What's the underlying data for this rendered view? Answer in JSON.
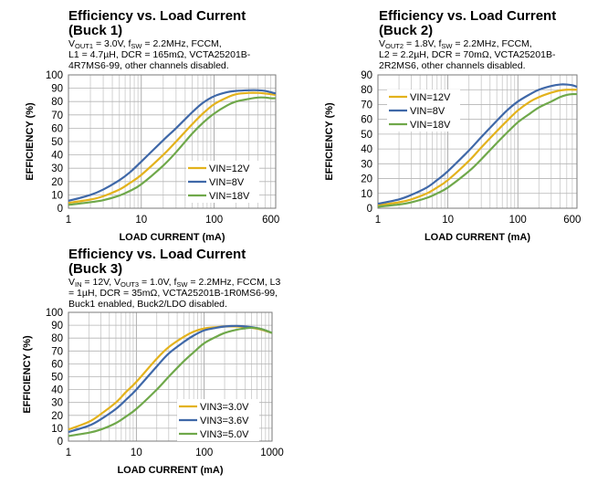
{
  "charts": [
    {
      "title1": "Efficiency vs. Load Current",
      "title2": "(Buck 1)",
      "cond": [
        [
          [
            "V",
            ""
          ],
          [
            "OUT1",
            "sub"
          ],
          [
            " = 3.0V, f",
            ""
          ],
          [
            "SW",
            "sub"
          ],
          [
            " = 2.2MHz, FCCM,",
            ""
          ]
        ],
        [
          [
            "L1 = 4.7µH, DCR = 165mΩ, VCTA25201B-",
            ""
          ]
        ],
        [
          [
            "4R7MS6-99, other channels disabled.",
            ""
          ]
        ]
      ]
    },
    {
      "title1": "Efficiency vs. Load Current",
      "title2": "(Buck 2)",
      "cond": [
        [
          [
            "V",
            ""
          ],
          [
            "OUT2",
            "sub"
          ],
          [
            " = 1.8V, f",
            ""
          ],
          [
            "SW",
            "sub"
          ],
          [
            " = 2.2MHz, FCCM,",
            ""
          ]
        ],
        [
          [
            "L2 = 2.2µH, DCR = 70mΩ, VCTA25201B-",
            ""
          ]
        ],
        [
          [
            "2R2MS6, other channels disabled.",
            ""
          ]
        ]
      ]
    },
    {
      "title1": "Efficiency vs. Load Current",
      "title2": "(Buck 3)",
      "cond": [
        [
          [
            "V",
            ""
          ],
          [
            "IN",
            "sub"
          ],
          [
            " = 12V, V",
            ""
          ],
          [
            "OUT3",
            "sub"
          ],
          [
            " = 1.0V, f",
            ""
          ],
          [
            "SW",
            "sub"
          ],
          [
            " = 2.2MHz, FCCM, L3",
            ""
          ]
        ],
        [
          [
            "= 1µH, DCR = 35mΩ, VCTA25201B-1R0MS6-99,",
            ""
          ]
        ],
        [
          [
            "Buck1 enabled, Buck2/LDO disabled.",
            ""
          ]
        ]
      ]
    }
  ],
  "chart_data": [
    {
      "type": "line",
      "xscale": "log",
      "xlim": [
        1,
        700
      ],
      "xticks": [
        1,
        10,
        100,
        600
      ],
      "ylim": [
        0,
        100
      ],
      "yticks": [
        0,
        10,
        20,
        30,
        40,
        50,
        60,
        70,
        80,
        90,
        100
      ],
      "xlabel": "LOAD CURRENT (mA)",
      "ylabel": "EFFICIENCY (%)",
      "grid": true,
      "legend": "bottom-right",
      "series": [
        {
          "name": "VIN=12V",
          "color": "#E3B21C",
          "x": [
            1,
            2,
            3,
            5,
            7,
            10,
            20,
            30,
            50,
            70,
            100,
            150,
            200,
            300,
            400,
            500,
            600,
            700
          ],
          "y": [
            4,
            6.5,
            9,
            14,
            19,
            25,
            40,
            50,
            63,
            71,
            78,
            83,
            85.5,
            86.5,
            86.5,
            86,
            85.5,
            85
          ]
        },
        {
          "name": "VIN=8V",
          "color": "#3F68A8",
          "x": [
            1,
            2,
            3,
            5,
            7,
            10,
            20,
            30,
            50,
            70,
            100,
            150,
            200,
            300,
            400,
            500,
            600,
            700
          ],
          "y": [
            5.5,
            10,
            14,
            21,
            27,
            35,
            51,
            60,
            72,
            79,
            84,
            87,
            88,
            88.5,
            88.5,
            88,
            87,
            86
          ]
        },
        {
          "name": "VIN=18V",
          "color": "#6FA84A",
          "x": [
            1,
            2,
            3,
            5,
            7,
            10,
            20,
            30,
            50,
            70,
            100,
            150,
            200,
            300,
            400,
            500,
            600,
            700
          ],
          "y": [
            2.5,
            4.5,
            6,
            9.5,
            13,
            18,
            32,
            42,
            56,
            64,
            71,
            77,
            80,
            82,
            83,
            83,
            82.5,
            82.5
          ]
        }
      ]
    },
    {
      "type": "line",
      "xscale": "log",
      "xlim": [
        1,
        700
      ],
      "xticks": [
        1,
        10,
        100,
        600
      ],
      "ylim": [
        0,
        90
      ],
      "yticks": [
        0,
        10,
        20,
        30,
        40,
        50,
        60,
        70,
        80,
        90
      ],
      "xlabel": "LOAD CURRENT (mA)",
      "ylabel": "EFFICIENCY (%)",
      "grid": true,
      "legend": "top-left",
      "series": [
        {
          "name": "VIN=12V",
          "color": "#E3B21C",
          "x": [
            1,
            2,
            3,
            5,
            7,
            10,
            20,
            30,
            50,
            70,
            100,
            150,
            200,
            300,
            400,
            500,
            600,
            700
          ],
          "y": [
            2,
            4,
            6,
            10,
            14,
            19,
            32,
            41,
            52,
            59,
            66,
            72,
            75,
            78,
            79.5,
            80,
            80,
            80
          ]
        },
        {
          "name": "VIN=8V",
          "color": "#3F68A8",
          "x": [
            1,
            2,
            3,
            5,
            7,
            10,
            20,
            30,
            50,
            70,
            100,
            150,
            200,
            300,
            400,
            500,
            600,
            700
          ],
          "y": [
            3,
            6,
            9,
            14,
            19,
            25,
            39,
            48,
            59,
            66,
            72,
            77,
            80,
            82.5,
            83.5,
            83.5,
            83,
            82
          ]
        },
        {
          "name": "VIN=18V",
          "color": "#6FA84A",
          "x": [
            1,
            2,
            3,
            5,
            7,
            10,
            20,
            30,
            50,
            70,
            100,
            150,
            200,
            300,
            400,
            500,
            600,
            700
          ],
          "y": [
            1,
            2.5,
            4,
            7,
            10,
            14,
            25,
            33,
            44,
            51,
            58,
            64,
            68,
            72,
            75,
            76.5,
            77,
            77
          ]
        }
      ]
    },
    {
      "type": "line",
      "xscale": "log",
      "xlim": [
        1,
        1000
      ],
      "xticks": [
        1,
        10,
        100,
        1000
      ],
      "ylim": [
        0,
        100
      ],
      "yticks": [
        0,
        10,
        20,
        30,
        40,
        50,
        60,
        70,
        80,
        90,
        100
      ],
      "xlabel": "LOAD CURRENT (mA)",
      "ylabel": "EFFICIENCY (%)",
      "grid": true,
      "legend": "bottom-center",
      "series": [
        {
          "name": "VIN3=3.0V",
          "color": "#E3B21C",
          "x": [
            1,
            2,
            3,
            5,
            7,
            10,
            20,
            30,
            50,
            70,
            100,
            150,
            200,
            300,
            400,
            500,
            700,
            1000
          ],
          "y": [
            9,
            15,
            21,
            30,
            38,
            46,
            64,
            73,
            81,
            85,
            87.5,
            88.5,
            89,
            89,
            88.5,
            88,
            86.5,
            84
          ]
        },
        {
          "name": "VIN3=3.6V",
          "color": "#3F68A8",
          "x": [
            1,
            2,
            3,
            5,
            7,
            10,
            20,
            30,
            50,
            70,
            100,
            150,
            200,
            300,
            400,
            500,
            700,
            1000
          ],
          "y": [
            7,
            12,
            17,
            25,
            32,
            40,
            58,
            68,
            77,
            82,
            86,
            88,
            89,
            89.5,
            89,
            88.5,
            87,
            84
          ]
        },
        {
          "name": "VIN3=5.0V",
          "color": "#6FA84A",
          "x": [
            1,
            2,
            3,
            5,
            7,
            10,
            20,
            30,
            50,
            70,
            100,
            150,
            200,
            300,
            400,
            500,
            700,
            1000
          ],
          "y": [
            4,
            6.5,
            9,
            14,
            19,
            25,
            40,
            50,
            62,
            69,
            76,
            81,
            84,
            86.5,
            87.5,
            88,
            87,
            84
          ]
        }
      ]
    }
  ]
}
